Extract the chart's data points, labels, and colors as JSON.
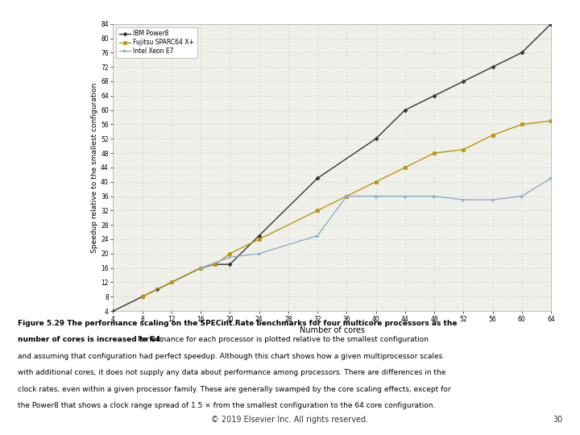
{
  "ibm_x": [
    4,
    8,
    10,
    16,
    18,
    20,
    24,
    32,
    40,
    44,
    48,
    52,
    56,
    60,
    64
  ],
  "ibm_y": [
    4,
    8,
    10,
    16,
    17,
    17,
    25,
    41,
    52,
    60,
    64,
    68,
    72,
    76,
    84
  ],
  "fujitsu_x": [
    8,
    12,
    16,
    18,
    20,
    24,
    32,
    36,
    40,
    44,
    48,
    52,
    56,
    60,
    64
  ],
  "fujitsu_y": [
    8,
    12,
    16,
    17,
    20,
    24,
    32,
    36,
    40,
    44,
    48,
    49,
    53,
    56,
    57
  ],
  "intel_x": [
    16,
    20,
    24,
    32,
    36,
    40,
    44,
    48,
    52,
    56,
    60,
    64
  ],
  "intel_y": [
    16,
    19,
    20,
    25,
    36,
    36,
    36,
    36,
    35,
    35,
    36,
    41
  ],
  "ibm_color": "#333333",
  "fujitsu_color": "#b8960c",
  "intel_color": "#8caccc",
  "ibm_label": "IBM Power8",
  "fujitsu_label": "Fujitsu SPARC64 X+",
  "intel_label": "Intel Xeon E7",
  "xlabel": "Number of cores",
  "ylabel": "Speedup relative to the smallest configuration",
  "xlim": [
    4,
    64
  ],
  "ylim": [
    4,
    84
  ],
  "xticks": [
    4,
    8,
    12,
    16,
    20,
    24,
    28,
    32,
    36,
    40,
    44,
    48,
    52,
    56,
    60,
    64
  ],
  "yticks": [
    4,
    8,
    12,
    16,
    20,
    24,
    28,
    32,
    36,
    40,
    44,
    48,
    52,
    56,
    60,
    64,
    68,
    72,
    76,
    80,
    84
  ],
  "grid_color": "#cccccc",
  "bg_color": "#f0f0ea",
  "footer": "© 2019 Elsevier Inc. All rights reserved.",
  "footer_page": "30"
}
